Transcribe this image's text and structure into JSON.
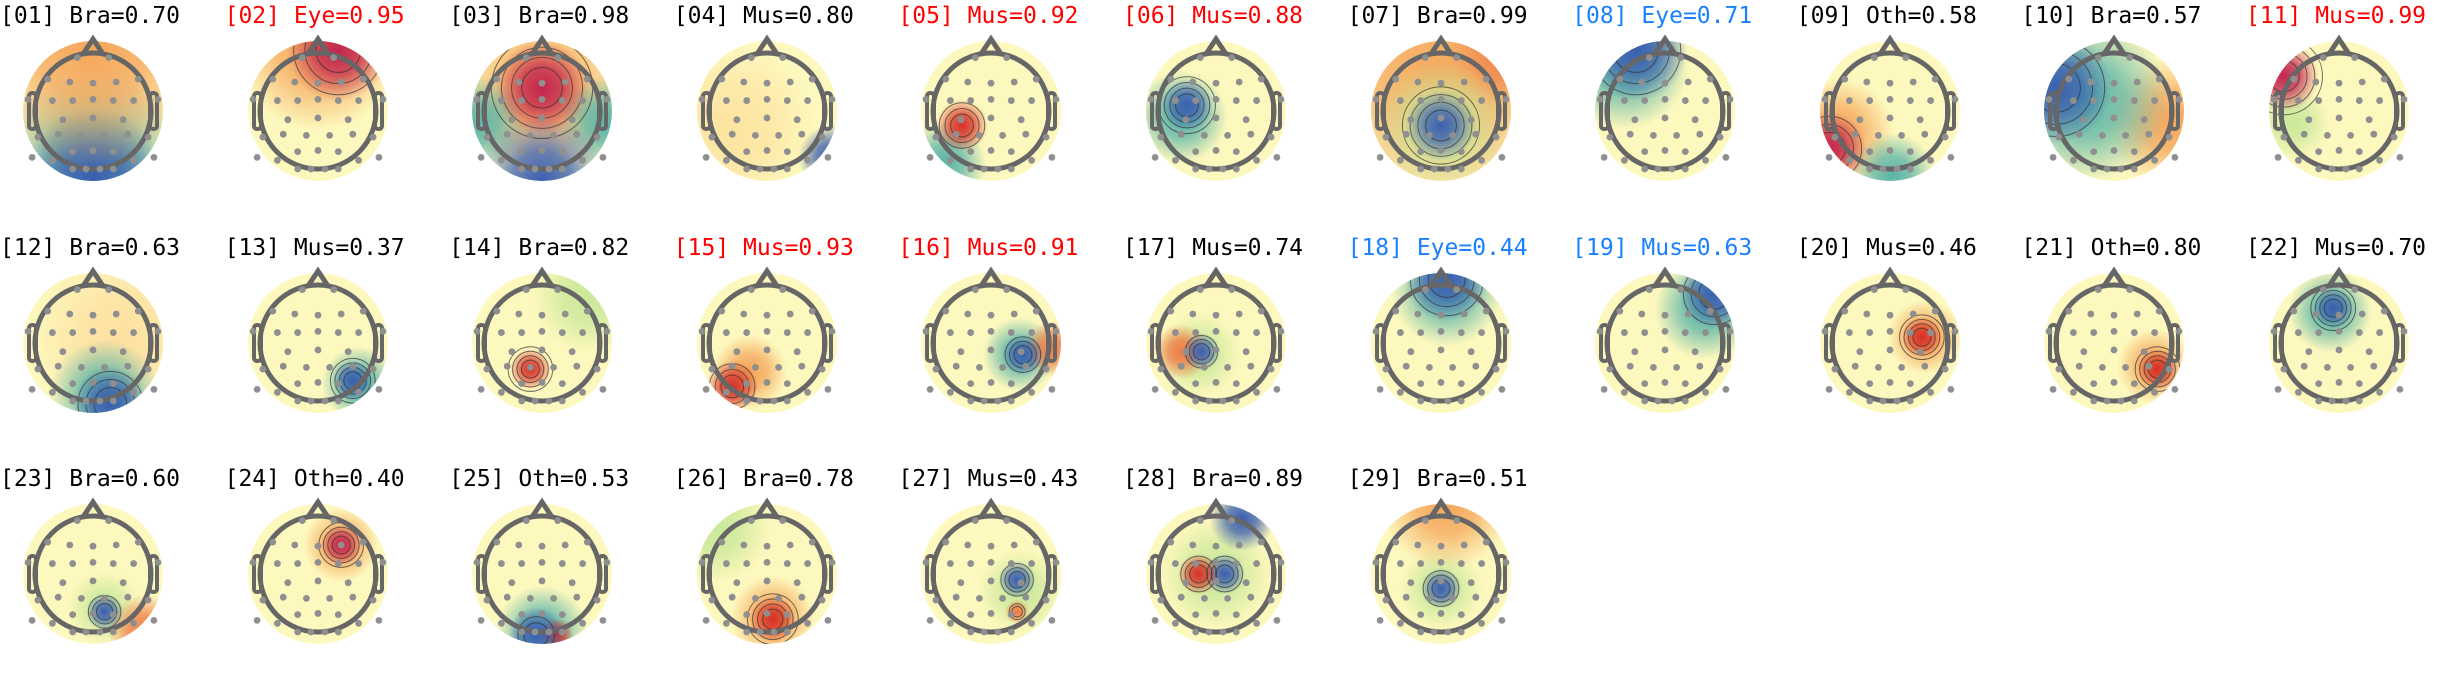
{
  "chart_data": {
    "type": "heatmap",
    "description_kind": "ICA component scalp topographies",
    "title_colors": {
      "default": "#000000",
      "flagged_red": "#ff0000",
      "flagged_blue": "#1a80ff"
    },
    "colormap": [
      "#3b5fb0",
      "#5ab4a8",
      "#d6ee9b",
      "#fdfbbf",
      "#fdc77a",
      "#f07a45",
      "#c2254f"
    ],
    "components": [
      {
        "index": "01",
        "label": "Bra",
        "score": "0.70",
        "title": "[01] Bra=0.70",
        "color": "#000000"
      },
      {
        "index": "02",
        "label": "Eye",
        "score": "0.95",
        "title": "[02] Eye=0.95",
        "color": "#ff0000"
      },
      {
        "index": "03",
        "label": "Bra",
        "score": "0.98",
        "title": "[03] Bra=0.98",
        "color": "#000000"
      },
      {
        "index": "04",
        "label": "Mus",
        "score": "0.80",
        "title": "[04] Mus=0.80",
        "color": "#000000"
      },
      {
        "index": "05",
        "label": "Mus",
        "score": "0.92",
        "title": "[05] Mus=0.92",
        "color": "#ff0000"
      },
      {
        "index": "06",
        "label": "Mus",
        "score": "0.88",
        "title": "[06] Mus=0.88",
        "color": "#ff0000"
      },
      {
        "index": "07",
        "label": "Bra",
        "score": "0.99",
        "title": "[07] Bra=0.99",
        "color": "#000000"
      },
      {
        "index": "08",
        "label": "Eye",
        "score": "0.71",
        "title": "[08] Eye=0.71",
        "color": "#1a80ff"
      },
      {
        "index": "09",
        "label": "Oth",
        "score": "0.58",
        "title": "[09] Oth=0.58",
        "color": "#000000"
      },
      {
        "index": "10",
        "label": "Bra",
        "score": "0.57",
        "title": "[10] Bra=0.57",
        "color": "#000000"
      },
      {
        "index": "11",
        "label": "Mus",
        "score": "0.99",
        "title": "[11] Mus=0.99",
        "color": "#ff0000"
      },
      {
        "index": "12",
        "label": "Bra",
        "score": "0.63",
        "title": "[12] Bra=0.63",
        "color": "#000000"
      },
      {
        "index": "13",
        "label": "Mus",
        "score": "0.37",
        "title": "[13] Mus=0.37",
        "color": "#000000"
      },
      {
        "index": "14",
        "label": "Bra",
        "score": "0.82",
        "title": "[14] Bra=0.82",
        "color": "#000000"
      },
      {
        "index": "15",
        "label": "Mus",
        "score": "0.93",
        "title": "[15] Mus=0.93",
        "color": "#ff0000"
      },
      {
        "index": "16",
        "label": "Mus",
        "score": "0.91",
        "title": "[16] Mus=0.91",
        "color": "#ff0000"
      },
      {
        "index": "17",
        "label": "Mus",
        "score": "0.74",
        "title": "[17] Mus=0.74",
        "color": "#000000"
      },
      {
        "index": "18",
        "label": "Eye",
        "score": "0.44",
        "title": "[18] Eye=0.44",
        "color": "#1a80ff"
      },
      {
        "index": "19",
        "label": "Mus",
        "score": "0.63",
        "title": "[19] Mus=0.63",
        "color": "#1a80ff"
      },
      {
        "index": "20",
        "label": "Mus",
        "score": "0.46",
        "title": "[20] Mus=0.46",
        "color": "#000000"
      },
      {
        "index": "21",
        "label": "Oth",
        "score": "0.80",
        "title": "[21] Oth=0.80",
        "color": "#000000"
      },
      {
        "index": "22",
        "label": "Mus",
        "score": "0.70",
        "title": "[22] Mus=0.70",
        "color": "#000000"
      },
      {
        "index": "23",
        "label": "Bra",
        "score": "0.60",
        "title": "[23] Bra=0.60",
        "color": "#000000"
      },
      {
        "index": "24",
        "label": "Oth",
        "score": "0.40",
        "title": "[24] Oth=0.40",
        "color": "#000000"
      },
      {
        "index": "25",
        "label": "Oth",
        "score": "0.53",
        "title": "[25] Oth=0.53",
        "color": "#000000"
      },
      {
        "index": "26",
        "label": "Bra",
        "score": "0.78",
        "title": "[26] Bra=0.78",
        "color": "#000000"
      },
      {
        "index": "27",
        "label": "Mus",
        "score": "0.43",
        "title": "[27] Mus=0.43",
        "color": "#000000"
      },
      {
        "index": "28",
        "label": "Bra",
        "score": "0.89",
        "title": "[28] Bra=0.89",
        "color": "#000000"
      },
      {
        "index": "29",
        "label": "Bra",
        "score": "0.51",
        "title": "[29] Bra=0.51",
        "color": "#000000"
      }
    ]
  }
}
